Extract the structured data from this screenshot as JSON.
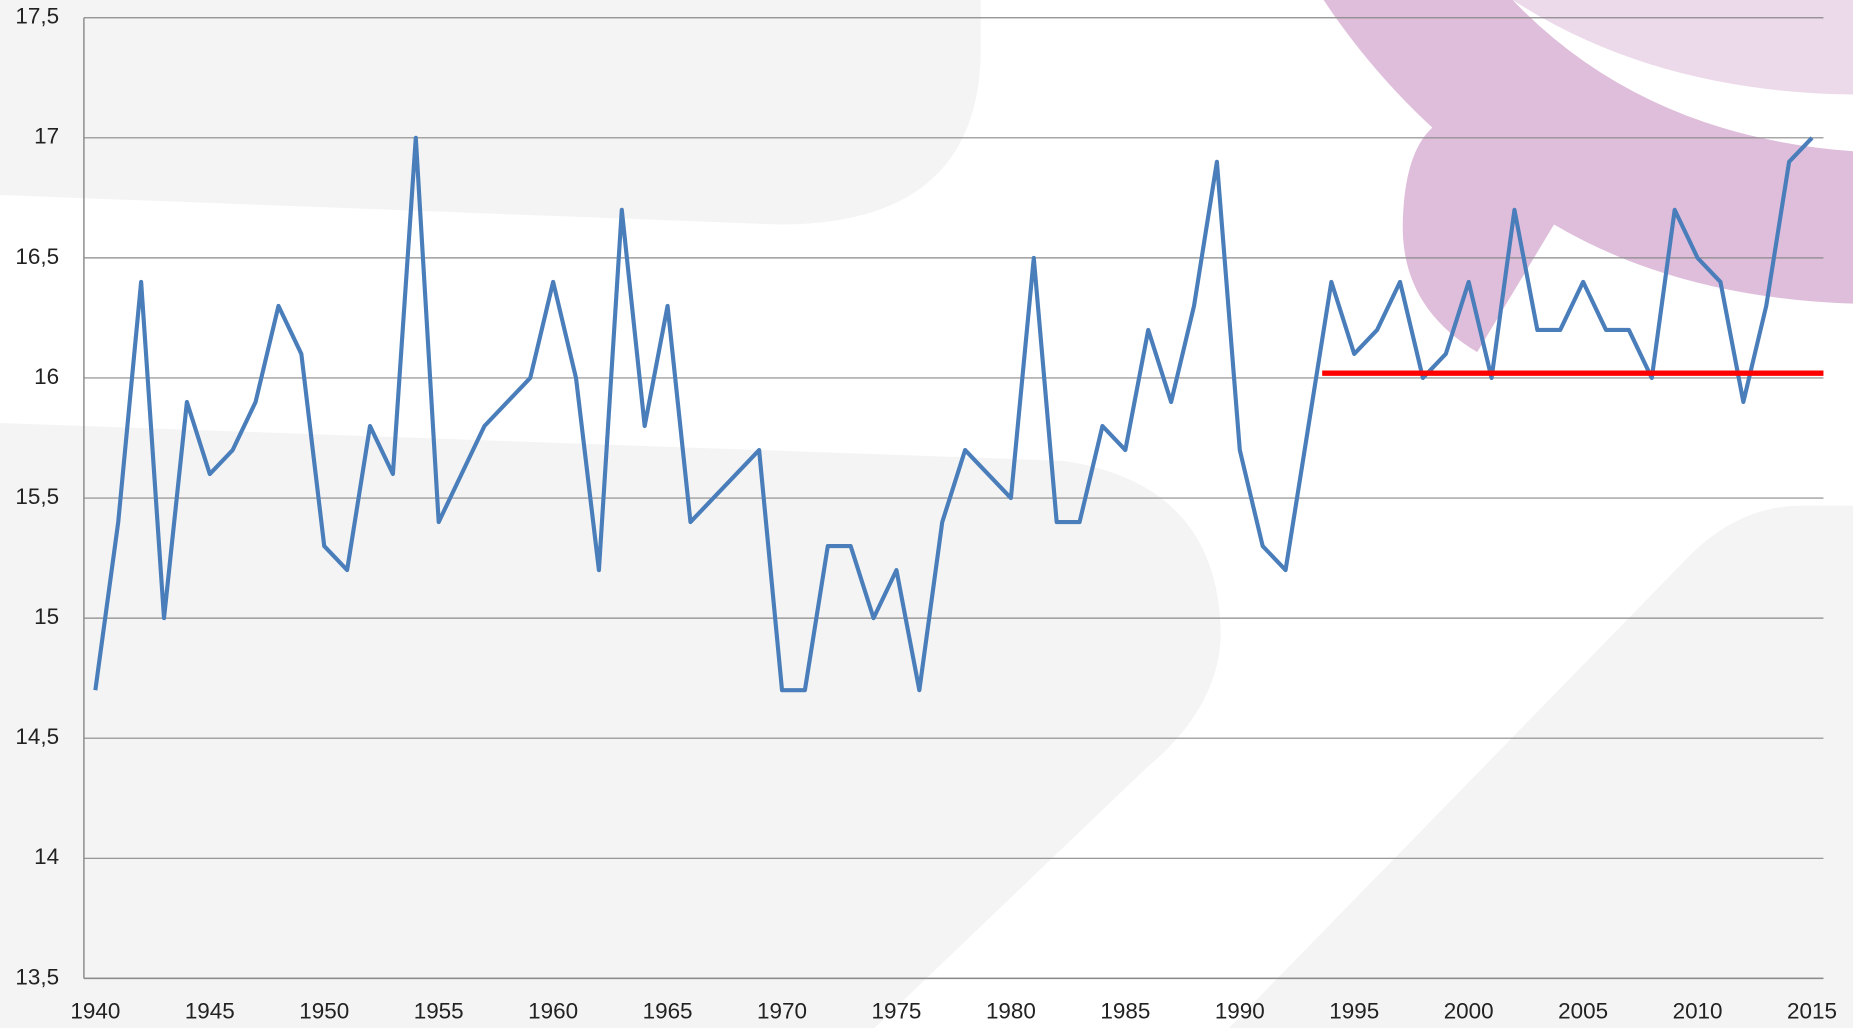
{
  "chart_data": {
    "type": "line",
    "x": [
      1940,
      1941,
      1942,
      1943,
      1944,
      1945,
      1946,
      1947,
      1948,
      1949,
      1950,
      1951,
      1952,
      1953,
      1954,
      1955,
      1956,
      1957,
      1958,
      1959,
      1960,
      1961,
      1962,
      1963,
      1964,
      1965,
      1966,
      1967,
      1968,
      1969,
      1970,
      1971,
      1972,
      1973,
      1974,
      1975,
      1976,
      1977,
      1978,
      1979,
      1980,
      1981,
      1982,
      1983,
      1984,
      1985,
      1986,
      1987,
      1988,
      1989,
      1990,
      1991,
      1992,
      1993,
      1994,
      1995,
      1996,
      1997,
      1998,
      1999,
      2000,
      2001,
      2002,
      2003,
      2004,
      2005,
      2006,
      2007,
      2008,
      2009,
      2010,
      2011,
      2012,
      2013,
      2014,
      2015
    ],
    "series": [
      {
        "color": "#4a7ebb",
        "values": [
          14.7,
          15.4,
          16.4,
          15.0,
          15.9,
          15.6,
          15.7,
          15.9,
          16.3,
          16.1,
          15.3,
          15.2,
          15.8,
          15.6,
          17.0,
          15.4,
          15.6,
          15.8,
          15.9,
          16.0,
          16.4,
          16.0,
          15.2,
          16.7,
          15.8,
          16.3,
          15.4,
          15.5,
          15.6,
          15.7,
          14.7,
          14.7,
          15.3,
          15.3,
          15.0,
          15.2,
          14.7,
          15.4,
          15.7,
          15.6,
          15.5,
          16.5,
          15.4,
          15.4,
          15.8,
          15.7,
          16.2,
          15.9,
          16.3,
          16.9,
          15.7,
          15.3,
          15.2,
          15.8,
          16.4,
          16.1,
          16.2,
          16.4,
          16.0,
          16.1,
          16.4,
          16.0,
          16.7,
          16.2,
          16.2,
          16.4,
          16.2,
          16.2,
          16.0,
          16.7,
          16.5,
          16.4,
          15.9,
          16.3,
          16.9,
          17.0
        ]
      }
    ],
    "reference_line": {
      "value": 16.02,
      "x": [
        1993.6,
        2015.5
      ],
      "color": "#ff0000"
    },
    "xlim": [
      1939.5,
      2015.5
    ],
    "xticks": [
      1940,
      1945,
      1950,
      1955,
      1960,
      1965,
      1970,
      1975,
      1980,
      1985,
      1990,
      1995,
      2000,
      2005,
      2010,
      2015
    ],
    "ylim": [
      13.5,
      17.5
    ],
    "yticks": [
      {
        "value": 13.5,
        "label": "13,5"
      },
      14,
      {
        "value": 14.5,
        "label": "14,5"
      },
      15,
      {
        "value": 15.5,
        "label": "15,5"
      },
      16,
      {
        "value": 16.5,
        "label": "16,5"
      },
      17,
      {
        "value": 17.5,
        "label": "17,5"
      }
    ],
    "grid": true
  }
}
